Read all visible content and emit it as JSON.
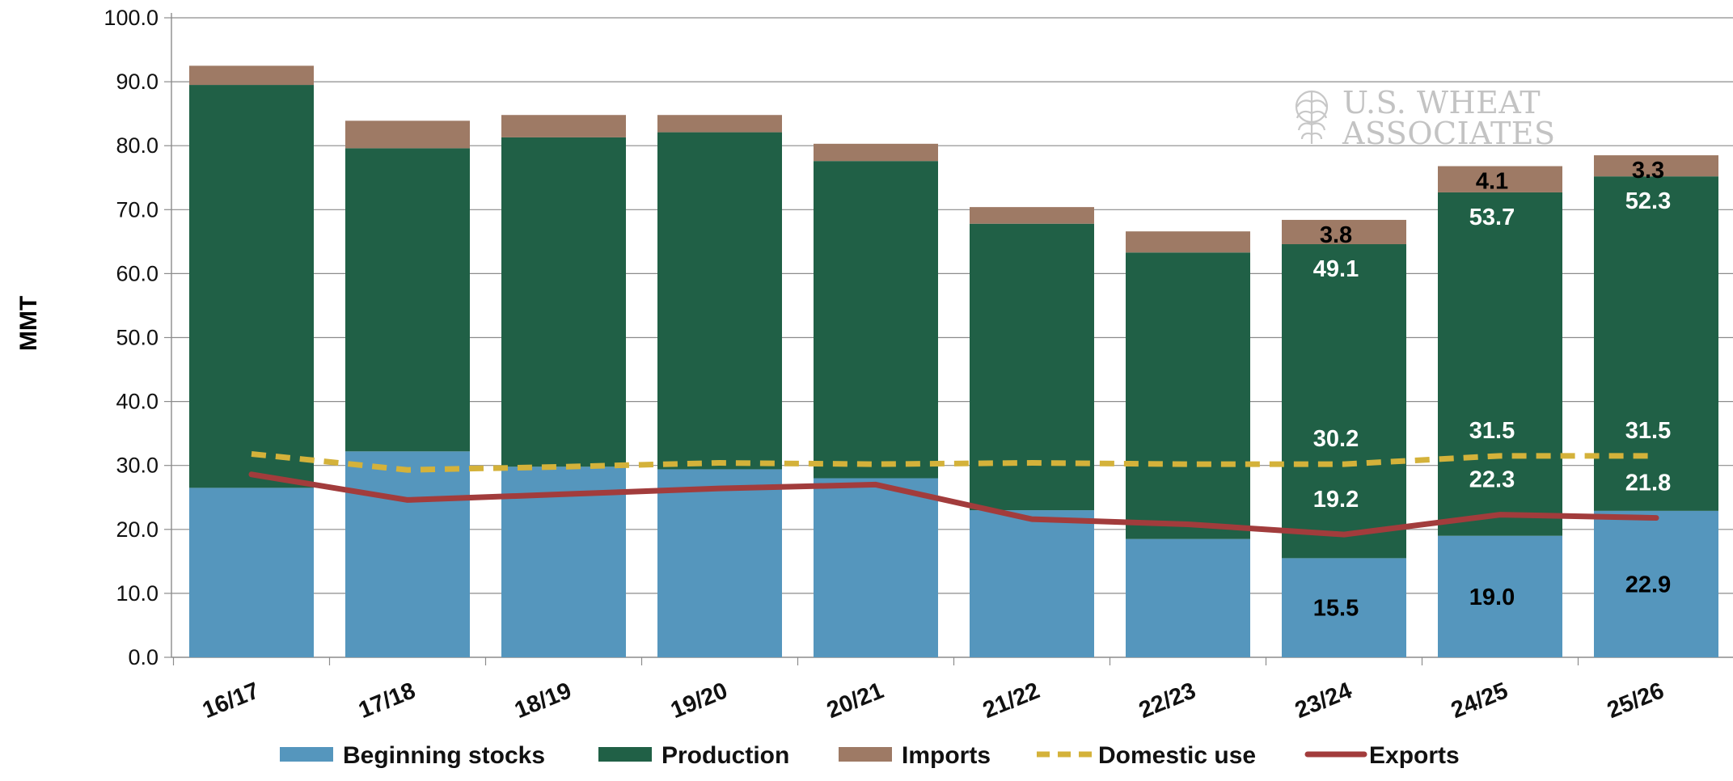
{
  "chart_data": {
    "type": "bar",
    "stacked": true,
    "title": "",
    "ylabel": "MMT",
    "xlabel": "",
    "ylim": [
      0,
      100
    ],
    "yticks": [
      "0.0",
      "10.0",
      "20.0",
      "30.0",
      "40.0",
      "50.0",
      "60.0",
      "70.0",
      "80.0",
      "90.0",
      "100.0"
    ],
    "grid": true,
    "legend_position": "bottom",
    "categories": [
      "16/17",
      "17/18",
      "18/19",
      "19/20",
      "20/21",
      "21/22",
      "22/23",
      "23/24",
      "24/25",
      "25/26"
    ],
    "series": [
      {
        "name": "Beginning stocks",
        "kind": "bar",
        "color": "#5596bd",
        "values": [
          26.5,
          32.2,
          29.8,
          29.4,
          28.0,
          23.0,
          18.5,
          15.5,
          19.0,
          22.9
        ]
      },
      {
        "name": "Production",
        "kind": "bar",
        "color": "#206046",
        "values": [
          63.0,
          47.4,
          51.5,
          52.7,
          49.6,
          44.8,
          44.8,
          49.1,
          53.7,
          52.3
        ]
      },
      {
        "name": "Imports",
        "kind": "bar",
        "color": "#9e7a65",
        "values": [
          3.0,
          4.3,
          3.5,
          2.7,
          2.7,
          2.6,
          3.3,
          3.8,
          4.1,
          3.3
        ]
      },
      {
        "name": "Domestic use",
        "kind": "line",
        "style": "dashed",
        "color": "#d4b23a",
        "values": [
          31.8,
          29.3,
          29.8,
          30.4,
          30.2,
          30.4,
          30.2,
          30.2,
          31.5,
          31.5
        ]
      },
      {
        "name": "Exports",
        "kind": "line",
        "style": "solid",
        "color": "#a23c3c",
        "values": [
          28.6,
          24.6,
          25.5,
          26.4,
          27.0,
          21.6,
          20.8,
          19.2,
          22.3,
          21.8
        ]
      }
    ],
    "data_labels": [
      {
        "category_index": 7,
        "series": "Beginning stocks",
        "text": "15.5"
      },
      {
        "category_index": 8,
        "series": "Beginning stocks",
        "text": "19.0"
      },
      {
        "category_index": 9,
        "series": "Beginning stocks",
        "text": "22.9"
      },
      {
        "category_index": 7,
        "series": "Production",
        "text": "49.1"
      },
      {
        "category_index": 8,
        "series": "Production",
        "text": "53.7"
      },
      {
        "category_index": 9,
        "series": "Production",
        "text": "52.3"
      },
      {
        "category_index": 7,
        "series": "Imports",
        "text": "3.8"
      },
      {
        "category_index": 8,
        "series": "Imports",
        "text": "4.1"
      },
      {
        "category_index": 9,
        "series": "Imports",
        "text": "3.3"
      },
      {
        "category_index": 7,
        "series": "Domestic use",
        "text": "30.2"
      },
      {
        "category_index": 8,
        "series": "Domestic use",
        "text": "31.5"
      },
      {
        "category_index": 9,
        "series": "Domestic use",
        "text": "31.5"
      },
      {
        "category_index": 7,
        "series": "Exports",
        "text": "19.2"
      },
      {
        "category_index": 8,
        "series": "Exports",
        "text": "22.3"
      },
      {
        "category_index": 9,
        "series": "Exports",
        "text": "21.8"
      }
    ]
  },
  "watermark": {
    "line1": "U.S. WHEAT",
    "line2": "ASSOCIATES",
    "icon": "wheat-globe-icon"
  }
}
